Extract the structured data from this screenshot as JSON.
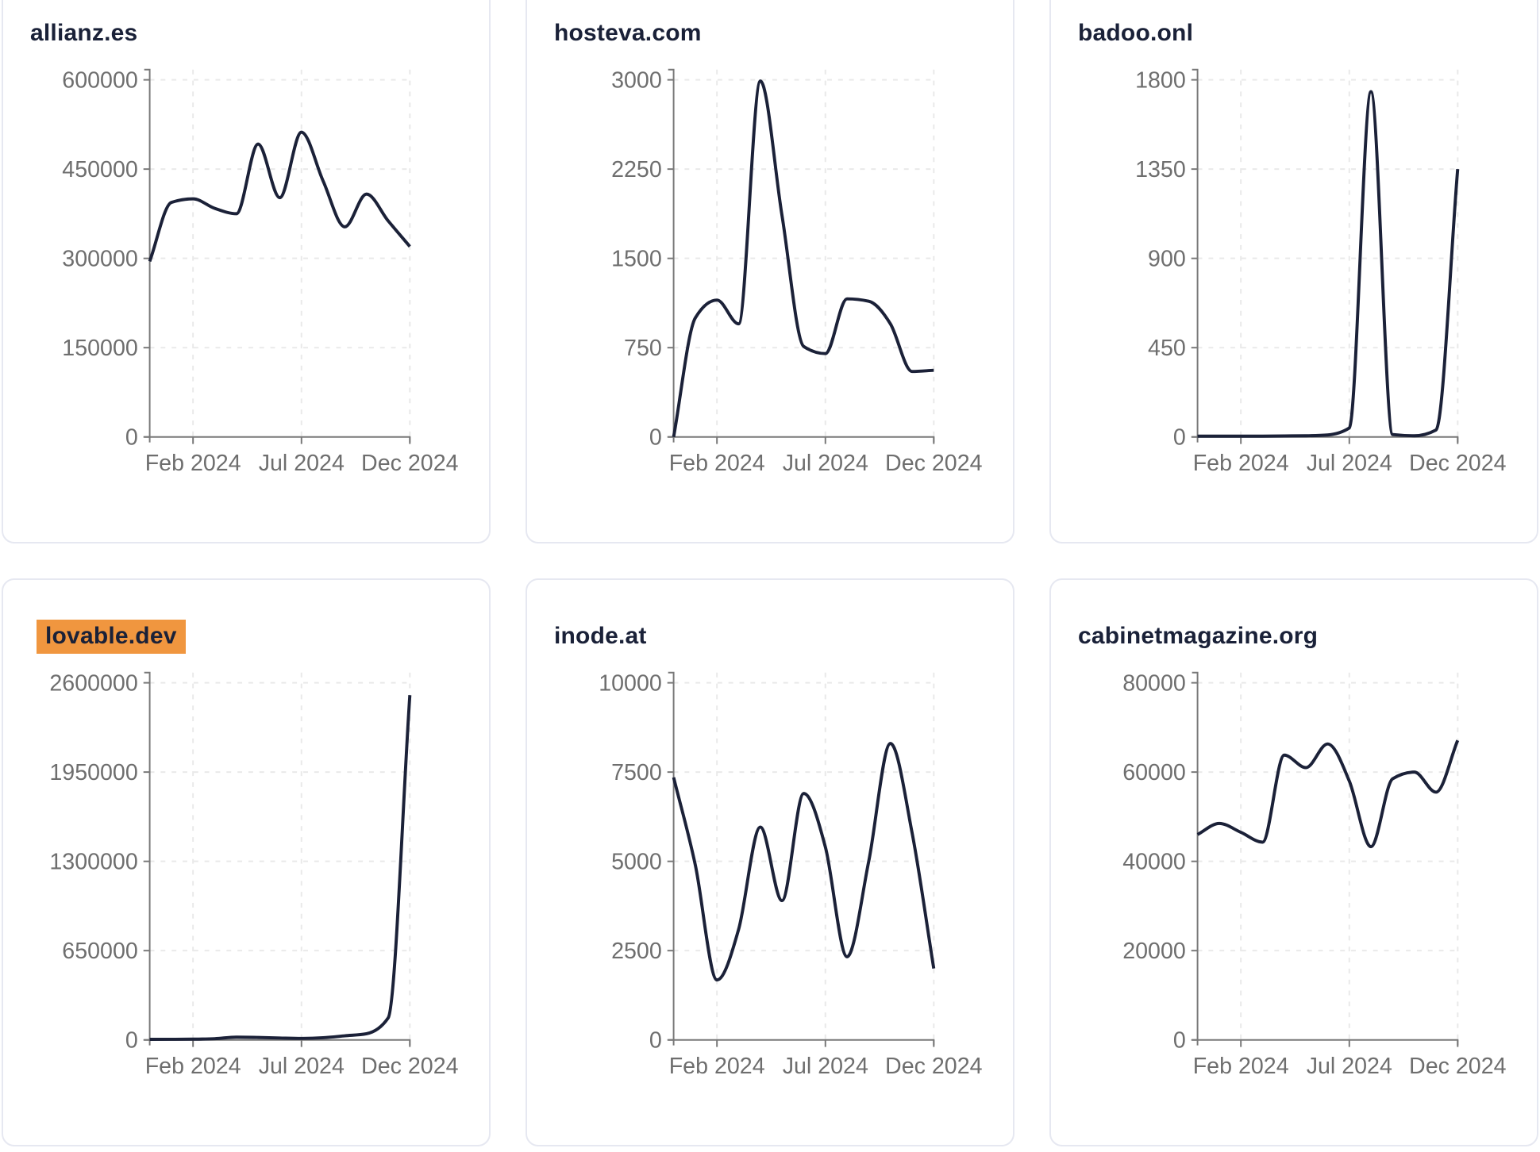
{
  "page": {
    "description": "Grid of six website-traffic line charts, one card per domain, monthly visits Dec 2023 - Dec 2024"
  },
  "colors": {
    "line": "#1b2138",
    "axis": "#787878",
    "tick_label": "#6e6e6e",
    "grid": "#e9e9e9",
    "title": "#1a2138",
    "card_border": "#e6e8f1",
    "highlight": "#f0963f",
    "card_background": "#ffffff"
  },
  "chart_data": [
    {
      "type": "line",
      "title": "allianz.es",
      "highlighted": false,
      "x": [
        "Dec 2023",
        "Jan 2024",
        "Feb 2024",
        "Mar 2024",
        "Apr 2024",
        "May 2024",
        "Jun 2024",
        "Jul 2024",
        "Aug 2024",
        "Sep 2024",
        "Oct 2024",
        "Nov 2024",
        "Dec 2024"
      ],
      "values": [
        295000,
        394000,
        400000,
        384000,
        375000,
        492000,
        402000,
        512000,
        430000,
        353000,
        408000,
        363000,
        320000
      ],
      "y_ticks": [
        0,
        150000,
        300000,
        450000,
        600000
      ],
      "ylim": [
        0,
        600000
      ],
      "x_ticks": [
        {
          "index": 2,
          "label": "Feb 2024"
        },
        {
          "index": 7,
          "label": "Jul 2024"
        },
        {
          "index": 12,
          "label": "Dec 2024"
        }
      ],
      "grid": true,
      "legend": "none"
    },
    {
      "type": "line",
      "title": "hosteva.com",
      "highlighted": false,
      "x": [
        "Dec 2023",
        "Jan 2024",
        "Feb 2024",
        "Mar 2024",
        "Apr 2024",
        "May 2024",
        "Jun 2024",
        "Jul 2024",
        "Aug 2024",
        "Sep 2024",
        "Oct 2024",
        "Nov 2024",
        "Dec 2024"
      ],
      "values": [
        0,
        1000,
        1150,
        950,
        2990,
        1860,
        760,
        700,
        1160,
        1140,
        950,
        550,
        560
      ],
      "y_ticks": [
        0,
        750,
        1500,
        2250,
        3000
      ],
      "ylim": [
        0,
        3000
      ],
      "x_ticks": [
        {
          "index": 2,
          "label": "Feb 2024"
        },
        {
          "index": 7,
          "label": "Jul 2024"
        },
        {
          "index": 12,
          "label": "Dec 2024"
        }
      ],
      "grid": true,
      "legend": "none"
    },
    {
      "type": "line",
      "title": "badoo.onl",
      "highlighted": false,
      "x": [
        "Dec 2023",
        "Jan 2024",
        "Feb 2024",
        "Mar 2024",
        "Apr 2024",
        "May 2024",
        "Jun 2024",
        "Jul 2024",
        "Aug 2024",
        "Sep 2024",
        "Oct 2024",
        "Nov 2024",
        "Dec 2024"
      ],
      "values": [
        4,
        4,
        4,
        4,
        5,
        6,
        10,
        45,
        1740,
        12,
        6,
        35,
        1350
      ],
      "y_ticks": [
        0,
        450,
        900,
        1350,
        1800
      ],
      "ylim": [
        0,
        1800
      ],
      "x_ticks": [
        {
          "index": 2,
          "label": "Feb 2024"
        },
        {
          "index": 7,
          "label": "Jul 2024"
        },
        {
          "index": 12,
          "label": "Dec 2024"
        }
      ],
      "grid": true,
      "legend": "none"
    },
    {
      "type": "line",
      "title": "lovable.dev",
      "highlighted": true,
      "x": [
        "Dec 2023",
        "Jan 2024",
        "Feb 2024",
        "Mar 2024",
        "Apr 2024",
        "May 2024",
        "Jun 2024",
        "Jul 2024",
        "Aug 2024",
        "Sep 2024",
        "Oct 2024",
        "Nov 2024",
        "Dec 2024"
      ],
      "values": [
        4000,
        4500,
        5500,
        9000,
        20000,
        18000,
        14000,
        11000,
        16000,
        30000,
        45000,
        160000,
        2510000
      ],
      "y_ticks": [
        0,
        650000,
        1300000,
        1950000,
        2600000
      ],
      "ylim": [
        0,
        2600000
      ],
      "x_ticks": [
        {
          "index": 2,
          "label": "Feb 2024"
        },
        {
          "index": 7,
          "label": "Jul 2024"
        },
        {
          "index": 12,
          "label": "Dec 2024"
        }
      ],
      "grid": true,
      "legend": "none"
    },
    {
      "type": "line",
      "title": "inode.at",
      "highlighted": false,
      "x": [
        "Dec 2023",
        "Jan 2024",
        "Feb 2024",
        "Mar 2024",
        "Apr 2024",
        "May 2024",
        "Jun 2024",
        "Jul 2024",
        "Aug 2024",
        "Sep 2024",
        "Oct 2024",
        "Nov 2024",
        "Dec 2024"
      ],
      "values": [
        7350,
        4900,
        1680,
        3100,
        5960,
        3900,
        6900,
        5400,
        2330,
        5000,
        8300,
        5800,
        2000
      ],
      "y_ticks": [
        0,
        2500,
        5000,
        7500,
        10000
      ],
      "ylim": [
        0,
        10000
      ],
      "x_ticks": [
        {
          "index": 2,
          "label": "Feb 2024"
        },
        {
          "index": 7,
          "label": "Jul 2024"
        },
        {
          "index": 12,
          "label": "Dec 2024"
        }
      ],
      "grid": true,
      "legend": "none"
    },
    {
      "type": "line",
      "title": "cabinetmagazine.org",
      "highlighted": false,
      "x": [
        "Dec 2023",
        "Jan 2024",
        "Feb 2024",
        "Mar 2024",
        "Apr 2024",
        "May 2024",
        "Jun 2024",
        "Jul 2024",
        "Aug 2024",
        "Sep 2024",
        "Oct 2024",
        "Nov 2024",
        "Dec 2024"
      ],
      "values": [
        46000,
        48500,
        46500,
        44300,
        63800,
        61000,
        66300,
        58000,
        43300,
        58500,
        60000,
        55500,
        67100
      ],
      "y_ticks": [
        0,
        20000,
        40000,
        60000,
        80000
      ],
      "ylim": [
        0,
        80000
      ],
      "x_ticks": [
        {
          "index": 2,
          "label": "Feb 2024"
        },
        {
          "index": 7,
          "label": "Jul 2024"
        },
        {
          "index": 12,
          "label": "Dec 2024"
        }
      ],
      "grid": true,
      "legend": "none"
    }
  ]
}
